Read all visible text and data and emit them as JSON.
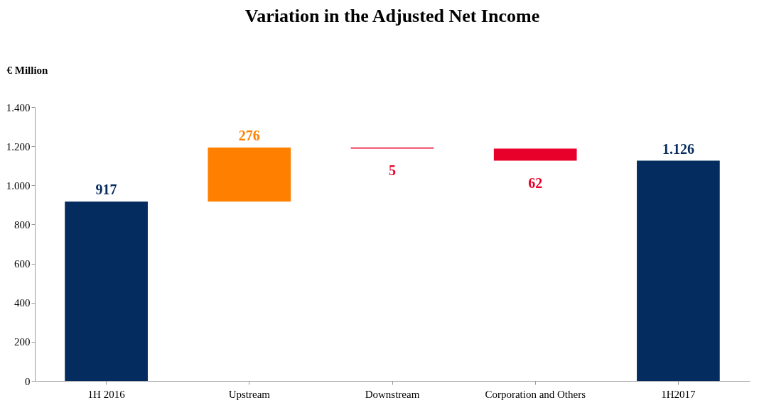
{
  "chart_data": {
    "type": "bar",
    "title": "Variation in the Adjusted Net Income",
    "ylabel": "€ Million",
    "categories": [
      "1H 2016",
      "Upstream",
      "Downstream",
      "Corporation and Others",
      "1H2017"
    ],
    "values": [
      917,
      276,
      -5,
      -62,
      1126
    ],
    "base": [
      0,
      917,
      1193,
      1188,
      0
    ],
    "colors": [
      "#052c5e",
      "#ff8000",
      "#e8002a",
      "#e8002a",
      "#052c5e"
    ],
    "value_labels": [
      "917",
      "276",
      "5",
      "62",
      "1.126"
    ],
    "ylim": [
      0,
      1400
    ],
    "yticks": [
      {
        "value": 0,
        "label": "0"
      },
      {
        "value": 200,
        "label": "200"
      },
      {
        "value": 400,
        "label": "400"
      },
      {
        "value": 600,
        "label": "600"
      },
      {
        "value": 800,
        "label": "800"
      },
      {
        "value": 1000,
        "label": "1.000"
      },
      {
        "value": 1200,
        "label": "1.200"
      },
      {
        "value": 1400,
        "label": "1.400"
      }
    ],
    "grid": false
  }
}
